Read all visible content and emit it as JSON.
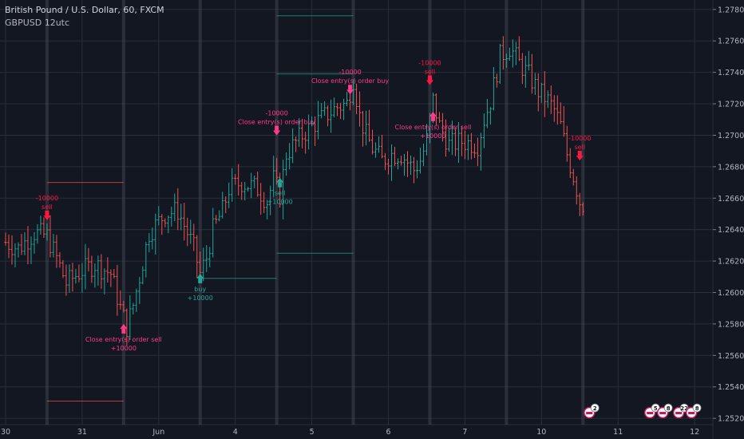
{
  "header": {
    "title": "British Pound / U.S. Dollar, 60, FXCM",
    "subtitle": "GBPUSD 12utc"
  },
  "colors": {
    "background": "#131722",
    "grid": "#2a2e39",
    "bull": "#26a69a",
    "bear": "#ef5350",
    "sell_signal": "#ff1744",
    "buy_signal": "#26a69a",
    "close_label": "#ff3b8b",
    "session_band": "#4a4e59"
  },
  "chart_data": {
    "type": "ohlc",
    "title": "British Pound / U.S. Dollar, 60, FXCM",
    "ylim": [
      1.2516,
      1.2786
    ],
    "y_ticks": [
      "1.2780",
      "1.2760",
      "1.2740",
      "1.2720",
      "1.2700",
      "1.2680",
      "1.2660",
      "1.2640",
      "1.2620",
      "1.2600",
      "1.2580",
      "1.2560",
      "1.2540",
      "1.2520"
    ],
    "x_ticks": [
      {
        "label": "30",
        "pos": 0
      },
      {
        "label": "31",
        "pos": 24
      },
      {
        "label": "Jun",
        "pos": 48
      },
      {
        "label": "4",
        "pos": 72
      },
      {
        "label": "5",
        "pos": 96
      },
      {
        "label": "6",
        "pos": 120
      },
      {
        "label": "7",
        "pos": 144
      },
      {
        "label": "10",
        "pos": 168
      },
      {
        "label": "11",
        "pos": 192
      },
      {
        "label": "12",
        "pos": 216
      }
    ],
    "grid": true,
    "session_bands_at": [
      13,
      37,
      61,
      85,
      109,
      133,
      157,
      181
    ],
    "price_path": [
      [
        0,
        1.2632
      ],
      [
        4,
        1.2628
      ],
      [
        9,
        1.2638
      ],
      [
        13,
        1.2636
      ],
      [
        16,
        1.2622
      ],
      [
        19,
        1.2606
      ],
      [
        24,
        1.2614
      ],
      [
        28,
        1.2618
      ],
      [
        33,
        1.2612
      ],
      [
        36,
        1.259
      ],
      [
        38,
        1.2578
      ],
      [
        40,
        1.2592
      ],
      [
        42,
        1.261
      ],
      [
        45,
        1.2638
      ],
      [
        50,
        1.265
      ],
      [
        54,
        1.2652
      ],
      [
        57,
        1.2638
      ],
      [
        59,
        1.2628
      ],
      [
        61,
        1.2612
      ],
      [
        63,
        1.2622
      ],
      [
        65,
        1.264
      ],
      [
        68,
        1.2652
      ],
      [
        70,
        1.2666
      ],
      [
        74,
        1.267
      ],
      [
        79,
        1.2666
      ],
      [
        82,
        1.2658
      ],
      [
        84,
        1.2672
      ],
      [
        86,
        1.2662
      ],
      [
        88,
        1.2688
      ],
      [
        92,
        1.2698
      ],
      [
        96,
        1.2706
      ],
      [
        100,
        1.2712
      ],
      [
        104,
        1.2718
      ],
      [
        107,
        1.272
      ],
      [
        109,
        1.2736
      ],
      [
        111,
        1.2712
      ],
      [
        113,
        1.27
      ],
      [
        115,
        1.2692
      ],
      [
        118,
        1.2684
      ],
      [
        121,
        1.2688
      ],
      [
        124,
        1.2688
      ],
      [
        128,
        1.2678
      ],
      [
        130,
        1.2684
      ],
      [
        132,
        1.2696
      ],
      [
        134,
        1.2722
      ],
      [
        136,
        1.2706
      ],
      [
        139,
        1.2694
      ],
      [
        143,
        1.2696
      ],
      [
        148,
        1.2694
      ],
      [
        150,
        1.271
      ],
      [
        152,
        1.2722
      ],
      [
        155,
        1.275
      ],
      [
        158,
        1.2756
      ],
      [
        161,
        1.2746
      ],
      [
        164,
        1.2738
      ],
      [
        167,
        1.2728
      ],
      [
        170,
        1.2722
      ],
      [
        172,
        1.2716
      ],
      [
        174,
        1.2706
      ],
      [
        176,
        1.2688
      ],
      [
        178,
        1.2674
      ],
      [
        180,
        1.2658
      ],
      [
        181,
        1.2656
      ]
    ],
    "signals": [
      {
        "kind": "sell",
        "bar": 13,
        "price": 1.2646,
        "lines": [
          "-10000",
          "sell"
        ]
      },
      {
        "kind": "buy-close",
        "bar": 37,
        "price": 1.258,
        "lines": [
          "Close entry(s) order sell",
          "+10000"
        ]
      },
      {
        "kind": "buy",
        "bar": 61,
        "price": 1.2612,
        "lines": [
          "buy",
          "+10000"
        ]
      },
      {
        "kind": "sell-close",
        "bar": 85,
        "price": 1.27,
        "lines": [
          "-10000",
          "Close entry(s) order buy"
        ]
      },
      {
        "kind": "buy",
        "bar": 86,
        "price": 1.2673,
        "lines": [
          "sell",
          "+10000"
        ]
      },
      {
        "kind": "sell-close",
        "bar": 108,
        "price": 1.2726,
        "lines": [
          "-10000",
          "Close entry(s) order buy"
        ]
      },
      {
        "kind": "sell",
        "bar": 133,
        "price": 1.2732,
        "lines": [
          "-10000",
          "sell"
        ]
      },
      {
        "kind": "buy-close",
        "bar": 134,
        "price": 1.2715,
        "lines": [
          "Close entry(s) order sell",
          "+10000"
        ]
      },
      {
        "kind": "sell",
        "bar": 180,
        "price": 1.2684,
        "lines": [
          "-10000",
          "sell"
        ]
      }
    ],
    "event_badges": [
      {
        "pos": 183,
        "label": "2"
      },
      {
        "pos": 202,
        "label": "5"
      },
      {
        "pos": 206,
        "label": "8"
      },
      {
        "pos": 211,
        "label": "22"
      },
      {
        "pos": 215,
        "label": "8"
      }
    ]
  }
}
